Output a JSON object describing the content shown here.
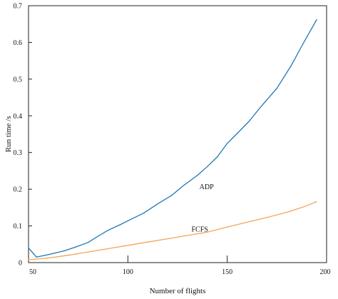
{
  "chart_data": {
    "type": "line",
    "title": "",
    "xlabel": "Number of flights",
    "ylabel": "Run time /s",
    "xlim": [
      50,
      200
    ],
    "ylim": [
      0,
      0.7
    ],
    "xticks": [
      50,
      100,
      150,
      200
    ],
    "yticks": [
      0,
      0.1,
      0.2,
      0.3,
      0.4,
      0.5,
      0.6,
      0.7
    ],
    "xtick_labels": [
      "50",
      "100",
      "150",
      "200"
    ],
    "ytick_labels": [
      "0",
      "0.1",
      "0.2",
      "0.3",
      "0.4",
      "0.5",
      "0.6",
      "0.7"
    ],
    "grid": false,
    "legend": "none (series labeled inline)",
    "series": [
      {
        "name": "ADP",
        "color": "#1f77b4",
        "label_at": [
          136,
          0.2
        ],
        "x": [
          50,
          54,
          60,
          68,
          74,
          80,
          85,
          90,
          96,
          100,
          108,
          115,
          122,
          128,
          135,
          140,
          145,
          150,
          155,
          161,
          167,
          175,
          182,
          188,
          195
        ],
        "y": [
          0.04,
          0.015,
          0.022,
          0.032,
          0.043,
          0.055,
          0.072,
          0.088,
          0.103,
          0.114,
          0.135,
          0.16,
          0.183,
          0.21,
          0.238,
          0.262,
          0.288,
          0.325,
          0.352,
          0.385,
          0.425,
          0.475,
          0.535,
          0.595,
          0.662
        ]
      },
      {
        "name": "FCFS",
        "color": "#f5a45a",
        "label_at": [
          132,
          0.085
        ],
        "x": [
          50,
          55,
          62,
          70,
          80,
          90,
          100,
          110,
          120,
          130,
          140,
          150,
          160,
          170,
          180,
          188,
          195
        ],
        "y": [
          0.008,
          0.01,
          0.014,
          0.02,
          0.029,
          0.038,
          0.047,
          0.056,
          0.065,
          0.074,
          0.083,
          0.097,
          0.11,
          0.123,
          0.137,
          0.151,
          0.166
        ]
      }
    ]
  }
}
